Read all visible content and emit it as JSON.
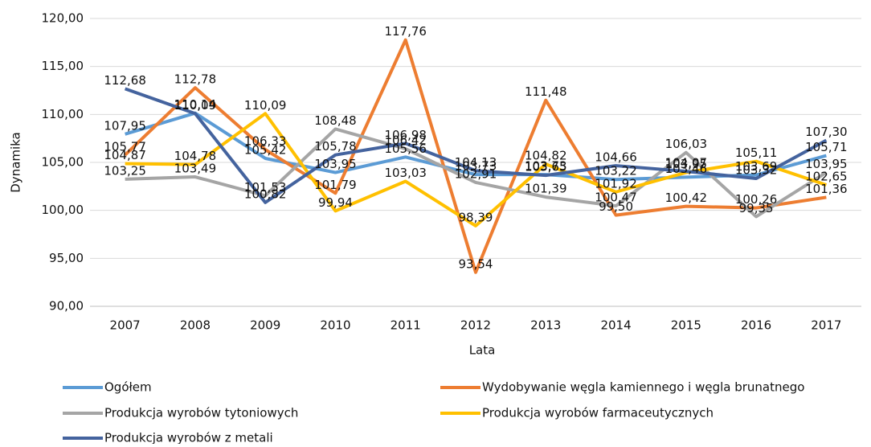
{
  "chart_data": {
    "type": "line",
    "categories": [
      "2007",
      "2008",
      "2009",
      "2010",
      "2011",
      "2012",
      "2013",
      "2014",
      "2015",
      "2016",
      "2017"
    ],
    "x_label": "Lata",
    "y_label": "Dynamika",
    "ylim": [
      90,
      120
    ],
    "yticks": [
      {
        "value": 90,
        "label": "90,00"
      },
      {
        "value": 95,
        "label": "95,00"
      },
      {
        "value": 100,
        "label": "100,00"
      },
      {
        "value": 105,
        "label": "105,00"
      },
      {
        "value": 110,
        "label": "110,00"
      },
      {
        "value": 115,
        "label": "115,00"
      },
      {
        "value": 120,
        "label": "120,00"
      }
    ],
    "grid": true,
    "series": [
      {
        "name": "Ogółem",
        "color": "#5b9bd5",
        "values": [
          107.95,
          110.14,
          105.42,
          103.95,
          105.56,
          103.73,
          103.73,
          103.22,
          103.46,
          103.69,
          105.71
        ],
        "value_labels": [
          "107,95",
          "110,14",
          "105,42",
          "103,95",
          "105,56",
          "103,73",
          "103,73",
          "103,22",
          "103,46",
          "103,69",
          "105,71"
        ]
      },
      {
        "name": "Wydobywanie węgla kamiennego i węgla brunatnego",
        "color": "#ed7d31",
        "values": [
          105.77,
          112.78,
          106.33,
          101.79,
          117.76,
          93.54,
          111.48,
          99.5,
          100.42,
          100.26,
          101.36
        ],
        "value_labels": [
          "105,77",
          "112,78",
          "106,33",
          "101,79",
          "117,76",
          "93,54",
          "111,48",
          "99,50",
          "100,42",
          "100,26",
          "101,36"
        ]
      },
      {
        "name": "Produkcja wyrobów tytoniowych",
        "color": "#a5a5a5",
        "values": [
          103.25,
          103.49,
          101.53,
          108.48,
          106.42,
          102.91,
          101.39,
          100.47,
          106.03,
          99.35,
          103.95
        ],
        "value_labels": [
          "103,25",
          "103,49",
          "101,53",
          "108,48",
          "106,42",
          "102,91",
          "101,39",
          "100,47",
          "106,03",
          "99,35",
          "103,95"
        ]
      },
      {
        "name": "Produkcja wyrobów farmaceutycznych",
        "color": "#ffc000",
        "values": [
          104.87,
          104.78,
          110.09,
          99.94,
          103.03,
          98.39,
          104.82,
          101.92,
          103.95,
          105.11,
          102.65
        ],
        "value_labels": [
          "104,87",
          "104,78",
          "110,09",
          "99,94",
          "103,03",
          "98,39",
          "104,82",
          "101,92",
          "103,95",
          "105,11",
          "102,65"
        ]
      },
      {
        "name": "Produkcja wyrobów z metali",
        "color": "#44639e",
        "values": [
          112.68,
          110.09,
          100.82,
          105.78,
          106.98,
          104.13,
          103.65,
          104.66,
          104.07,
          103.32,
          107.3
        ],
        "value_labels": [
          "112,68",
          "110,09",
          "100,82",
          "105,78",
          "106,98",
          "104,13",
          "103,65",
          "104,66",
          "104,07",
          "103,32",
          "107,30"
        ]
      }
    ]
  }
}
